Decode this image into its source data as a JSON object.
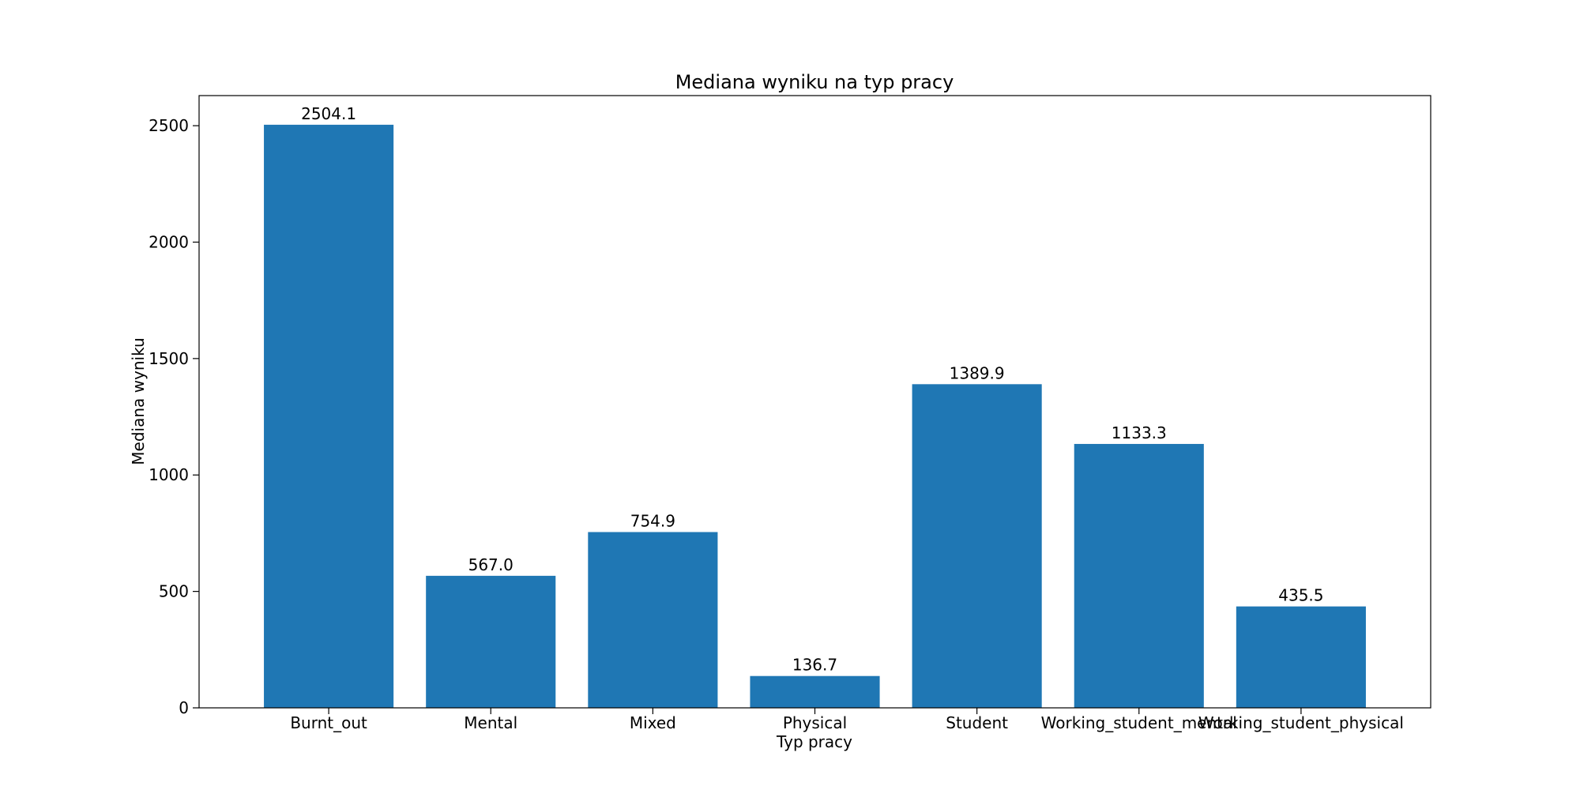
{
  "colors": {
    "bar": "#1f77b4",
    "axis": "#000000",
    "text": "#000000",
    "background": "#ffffff"
  },
  "chart_data": {
    "type": "bar",
    "title": "Mediana wyniku na typ pracy",
    "xlabel": "Typ pracy",
    "ylabel": "Mediana wyniku",
    "categories": [
      "Burnt_out",
      "Mental",
      "Mixed",
      "Physical",
      "Student",
      "Working_student_mental",
      "Working_student_physical"
    ],
    "values": [
      2504.1,
      567.0,
      754.9,
      136.7,
      1389.9,
      1133.3,
      435.5
    ],
    "value_labels": [
      "2504.1",
      "567.0",
      "754.9",
      "136.7",
      "1389.9",
      "1133.3",
      "435.5"
    ],
    "yticks": [
      0,
      500,
      1000,
      1500,
      2000,
      2500
    ],
    "ytick_labels": [
      "0",
      "500",
      "1000",
      "1500",
      "2000",
      "2500"
    ],
    "ylim": [
      0,
      2629.3
    ],
    "grid": false,
    "legend": "none"
  }
}
